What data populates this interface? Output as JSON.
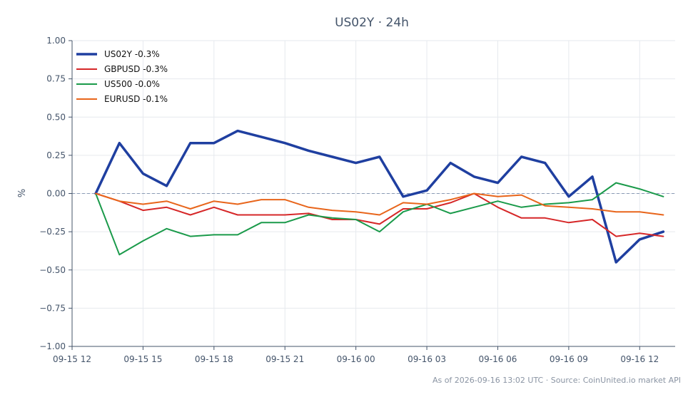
{
  "chart_data": {
    "type": "line",
    "title": "US02Y · 24h",
    "ylabel": "%",
    "xlabel": "",
    "ylim": [
      -1.0,
      1.0
    ],
    "y_ticks": [
      "1.00",
      "0.75",
      "0.50",
      "0.25",
      "0.00",
      "−0.25",
      "−0.50",
      "−0.75",
      "−1.00"
    ],
    "y_tick_values": [
      1.0,
      0.75,
      0.5,
      0.25,
      0.0,
      -0.25,
      -0.5,
      -0.75,
      -1.0
    ],
    "x_ticks": [
      "09-15 12",
      "09-15 15",
      "09-15 18",
      "09-15 21",
      "09-16 00",
      "09-16 03",
      "09-16 06",
      "09-16 09",
      "09-16 12"
    ],
    "x_tick_hours": [
      12,
      15,
      18,
      21,
      24,
      27,
      30,
      33,
      36
    ],
    "x_hours": [
      13,
      14,
      15,
      16,
      17,
      18,
      19,
      20,
      21,
      22,
      23,
      24,
      25,
      26,
      27,
      28,
      29,
      30,
      31,
      32,
      33,
      34,
      35,
      36,
      37
    ],
    "grid": true,
    "zero_line": true,
    "legend_position": "top-left",
    "series": [
      {
        "name": "US02Y -0.3%",
        "color": "#1f3fa0",
        "width": 3.5,
        "values": [
          0.0,
          0.33,
          0.13,
          0.05,
          0.33,
          0.33,
          0.41,
          0.37,
          0.33,
          0.28,
          0.24,
          0.2,
          0.24,
          -0.02,
          0.02,
          0.2,
          0.11,
          0.07,
          0.24,
          0.2,
          -0.02,
          0.11,
          -0.45,
          -0.3,
          -0.25
        ]
      },
      {
        "name": "GBPUSD -0.3%",
        "color": "#d62728",
        "width": 2,
        "values": [
          0.0,
          -0.05,
          -0.11,
          -0.09,
          -0.14,
          -0.09,
          -0.14,
          -0.14,
          -0.14,
          -0.13,
          -0.17,
          -0.17,
          -0.2,
          -0.1,
          -0.1,
          -0.06,
          0.0,
          -0.09,
          -0.16,
          -0.16,
          -0.19,
          -0.17,
          -0.28,
          -0.26,
          -0.28
        ]
      },
      {
        "name": "US500 -0.0%",
        "color": "#1a9a4a",
        "width": 2,
        "values": [
          0.0,
          -0.4,
          -0.31,
          -0.23,
          -0.28,
          -0.27,
          -0.27,
          -0.19,
          -0.19,
          -0.14,
          -0.16,
          -0.17,
          -0.25,
          -0.12,
          -0.07,
          -0.13,
          -0.09,
          -0.05,
          -0.09,
          -0.07,
          -0.06,
          -0.04,
          0.07,
          0.03,
          -0.02
        ]
      },
      {
        "name": "EURUSD -0.1%",
        "color": "#e8651b",
        "width": 2,
        "values": [
          0.0,
          -0.05,
          -0.07,
          -0.05,
          -0.1,
          -0.05,
          -0.07,
          -0.04,
          -0.04,
          -0.09,
          -0.11,
          -0.12,
          -0.14,
          -0.06,
          -0.07,
          -0.04,
          0.0,
          -0.02,
          -0.01,
          -0.08,
          -0.09,
          -0.1,
          -0.12,
          -0.12,
          -0.14
        ]
      }
    ]
  },
  "footer": "As of 2026-09-16 13:02 UTC · Source: CoinUnited.io market API"
}
